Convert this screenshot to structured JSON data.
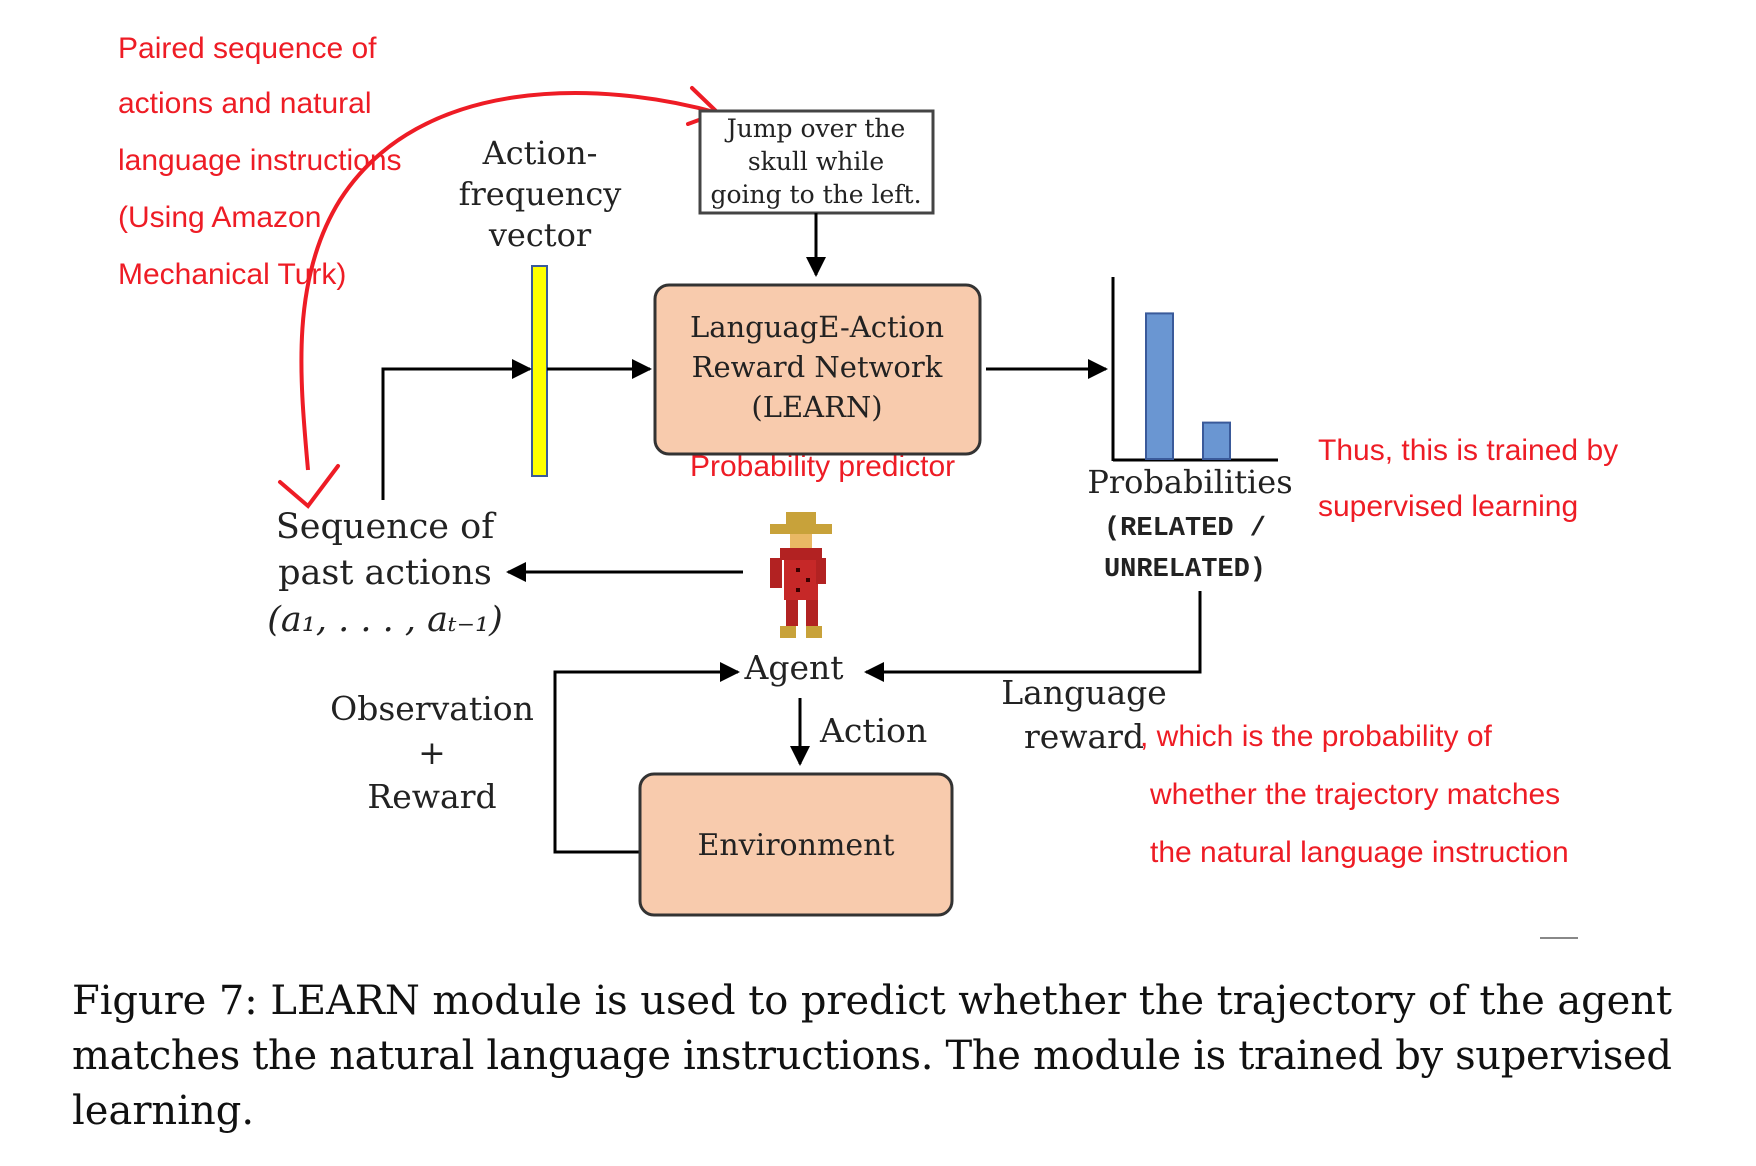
{
  "annotations": {
    "paired": [
      "Paired sequence of",
      "actions and natural",
      "language instructions",
      "(Using Amazon",
      "Mechanical Turk)"
    ],
    "prob_predictor": "Probability predictor",
    "trained": [
      "Thus, this is trained by",
      "supervised learning"
    ],
    "lang_reward": [
      ", which is the probability of",
      "whether the trajectory matches",
      "the natural language instruction"
    ]
  },
  "diagram": {
    "instruction": [
      "Jump over the",
      "skull while",
      "going to the left."
    ],
    "afv": [
      "Action-",
      "frequency",
      "vector"
    ],
    "learn": [
      "LanguagE-Action",
      "Reward Network",
      "(LEARN)"
    ],
    "probabilities": "Probabilities",
    "related": "(RELATED /",
    "unrelated": "UNRELATED)",
    "past_actions": [
      "Sequence of",
      "past actions",
      "(a₁, . . . , aₜ₋₁)"
    ],
    "agent": "Agent",
    "action": "Action",
    "observation": [
      "Observation",
      "+",
      "Reward"
    ],
    "language_reward": [
      "Language",
      "reward"
    ],
    "environment": "Environment"
  },
  "chart_data": {
    "type": "bar",
    "categories": [
      "RELATED",
      "UNRELATED"
    ],
    "values": [
      0.8,
      0.2
    ],
    "ylim": [
      0,
      1
    ]
  },
  "caption": [
    "Figure 7:  LEARN module is used to predict whether the trajectory of the agent",
    "matches the natural language instructions.  The module is trained by supervised",
    "learning."
  ],
  "colors": {
    "box_fill": "#f8cbad",
    "bar_fill": "#6a96d2",
    "vector_fill": "#ffff00",
    "annotation": "#ee1c25"
  }
}
